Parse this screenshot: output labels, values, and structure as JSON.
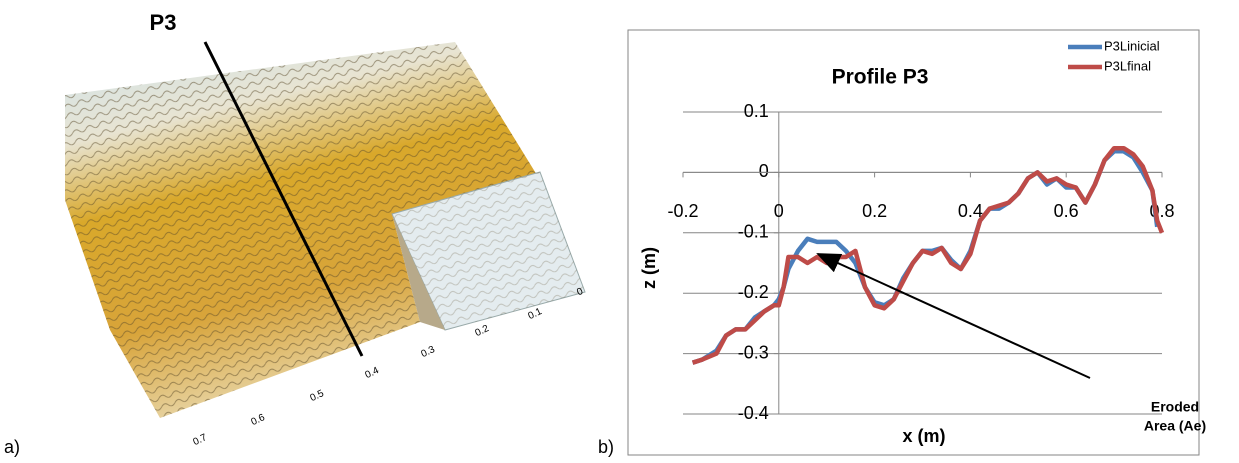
{
  "panel_a": {
    "label": "a)",
    "profile_label": "P3",
    "axis_labels": [
      "0.7",
      "0.6",
      "0.5",
      "0.4",
      "0.3",
      "0.2",
      "0.1",
      "0"
    ]
  },
  "panel_b_label": "b)",
  "chart_data": {
    "type": "line",
    "title": "Profile P3",
    "x_label": "x (m)",
    "y_label": "z (m)",
    "x": [
      -0.18,
      -0.16,
      -0.13,
      -0.11,
      -0.09,
      -0.07,
      -0.05,
      -0.03,
      -0.01,
      0,
      0.01,
      0.02,
      0.04,
      0.06,
      0.08,
      0.1,
      0.12,
      0.14,
      0.16,
      0.18,
      0.2,
      0.22,
      0.24,
      0.26,
      0.28,
      0.3,
      0.32,
      0.34,
      0.36,
      0.38,
      0.4,
      0.42,
      0.44,
      0.46,
      0.48,
      0.5,
      0.52,
      0.54,
      0.56,
      0.58,
      0.6,
      0.62,
      0.64,
      0.66,
      0.68,
      0.7,
      0.72,
      0.74,
      0.76,
      0.78,
      0.79,
      0.8
    ],
    "series": [
      {
        "name": "P3Linicial",
        "color": "#4a7ebb",
        "values": [
          -0.315,
          -0.31,
          -0.295,
          -0.27,
          -0.26,
          -0.26,
          -0.24,
          -0.23,
          -0.22,
          -0.21,
          -0.19,
          -0.16,
          -0.13,
          -0.11,
          -0.115,
          -0.115,
          -0.115,
          -0.13,
          -0.15,
          -0.19,
          -0.215,
          -0.22,
          -0.21,
          -0.175,
          -0.15,
          -0.13,
          -0.13,
          -0.125,
          -0.145,
          -0.16,
          -0.13,
          -0.08,
          -0.06,
          -0.06,
          -0.05,
          -0.035,
          -0.01,
          0.0,
          -0.02,
          -0.01,
          -0.025,
          -0.025,
          -0.05,
          -0.02,
          0.02,
          0.035,
          0.035,
          0.025,
          0.0,
          -0.03,
          -0.09,
          null
        ]
      },
      {
        "name": "P3Lfinal",
        "color": "#be4b48",
        "values": [
          -0.315,
          -0.31,
          -0.3,
          -0.27,
          -0.26,
          -0.26,
          -0.245,
          -0.23,
          -0.22,
          -0.22,
          -0.19,
          -0.14,
          -0.14,
          -0.15,
          -0.14,
          -0.15,
          -0.14,
          -0.14,
          -0.13,
          -0.19,
          -0.22,
          -0.225,
          -0.21,
          -0.18,
          -0.15,
          -0.13,
          -0.135,
          -0.125,
          -0.15,
          -0.16,
          -0.135,
          -0.08,
          -0.06,
          -0.055,
          -0.05,
          -0.035,
          -0.01,
          0.0,
          -0.015,
          -0.01,
          -0.02,
          -0.025,
          -0.05,
          -0.02,
          0.02,
          0.04,
          0.04,
          0.03,
          0.01,
          -0.03,
          -0.08,
          -0.1
        ]
      }
    ],
    "xlim": [
      -0.2,
      0.8
    ],
    "xticks": [
      -0.2,
      0,
      0.2,
      0.4,
      0.6,
      0.8
    ],
    "ylim": [
      -0.4,
      0.1
    ],
    "yticks": [
      -0.4,
      -0.3,
      -0.2,
      -0.1,
      0,
      0.1
    ],
    "grid": true,
    "legend": "top-right",
    "annotation": [
      "Eroded",
      "Area (Ae)"
    ]
  }
}
